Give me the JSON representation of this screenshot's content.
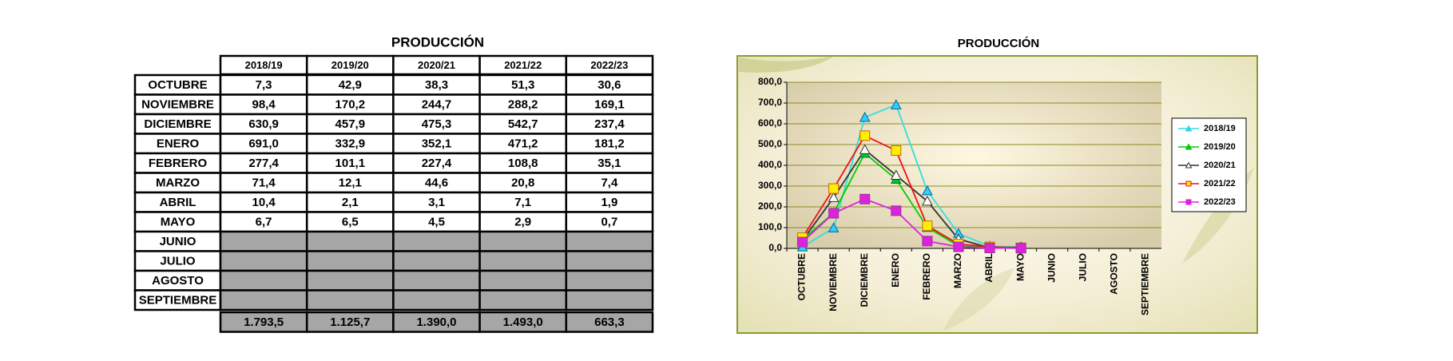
{
  "table": {
    "title": "PRODUCCIÓN",
    "columns": [
      "2018/19",
      "2019/20",
      "2020/21",
      "2021/22",
      "2022/23"
    ],
    "rows": [
      {
        "label": "OCTUBRE",
        "values": [
          "7,3",
          "42,9",
          "38,3",
          "51,3",
          "30,6"
        ]
      },
      {
        "label": "NOVIEMBRE",
        "values": [
          "98,4",
          "170,2",
          "244,7",
          "288,2",
          "169,1"
        ]
      },
      {
        "label": "DICIEMBRE",
        "values": [
          "630,9",
          "457,9",
          "475,3",
          "542,7",
          "237,4"
        ]
      },
      {
        "label": "ENERO",
        "values": [
          "691,0",
          "332,9",
          "352,1",
          "471,2",
          "181,2"
        ]
      },
      {
        "label": "FEBRERO",
        "values": [
          "277,4",
          "101,1",
          "227,4",
          "108,8",
          "35,1"
        ]
      },
      {
        "label": "MARZO",
        "values": [
          "71,4",
          "12,1",
          "44,6",
          "20,8",
          "7,4"
        ]
      },
      {
        "label": "ABRIL",
        "values": [
          "10,4",
          "2,1",
          "3,1",
          "7,1",
          "1,9"
        ]
      },
      {
        "label": "MAYO",
        "values": [
          "6,7",
          "6,5",
          "4,5",
          "2,9",
          "0,7"
        ]
      },
      {
        "label": "JUNIO",
        "values": [
          null,
          null,
          null,
          null,
          null
        ]
      },
      {
        "label": "JULIO",
        "values": [
          null,
          null,
          null,
          null,
          null
        ]
      },
      {
        "label": "AGOSTO",
        "values": [
          null,
          null,
          null,
          null,
          null
        ]
      },
      {
        "label": "SEPTIEMBRE",
        "values": [
          null,
          null,
          null,
          null,
          null
        ]
      }
    ],
    "totals": [
      "1.793,5",
      "1.125,7",
      "1.390,0",
      "1.493,0",
      "663,3"
    ]
  },
  "chart_data": {
    "type": "line",
    "title": "PRODUCCIÓN",
    "categories": [
      "OCTUBRE",
      "NOVIEMBRE",
      "DICIEMBRE",
      "ENERO",
      "FEBRERO",
      "MARZO",
      "ABRIL",
      "MAYO",
      "JUNIO",
      "JULIO",
      "AGOSTO",
      "SEPTIEMBRE"
    ],
    "series": [
      {
        "name": "2018/19",
        "color": "#33dddd",
        "marker": "triangle",
        "marker_fill": "#33ccff",
        "values": [
          7.3,
          98.4,
          630.9,
          691.0,
          277.4,
          71.4,
          10.4,
          6.7,
          null,
          null,
          null,
          null
        ]
      },
      {
        "name": "2019/20",
        "color": "#00cc00",
        "marker": "triangle",
        "marker_fill": "#00cc00",
        "values": [
          42.9,
          170.2,
          457.9,
          332.9,
          101.1,
          12.1,
          2.1,
          6.5,
          null,
          null,
          null,
          null
        ]
      },
      {
        "name": "2020/21",
        "color": "#333333",
        "marker": "triangle",
        "marker_fill": "#ffffff",
        "values": [
          38.3,
          244.7,
          475.3,
          352.1,
          227.4,
          44.6,
          3.1,
          4.5,
          null,
          null,
          null,
          null
        ]
      },
      {
        "name": "2021/22",
        "color": "#ee1111",
        "marker": "square",
        "marker_fill": "#ffee00",
        "values": [
          51.3,
          288.2,
          542.7,
          471.2,
          108.8,
          20.8,
          7.1,
          2.9,
          null,
          null,
          null,
          null
        ]
      },
      {
        "name": "2022/23",
        "color": "#dd22dd",
        "marker": "square",
        "marker_fill": "#dd22dd",
        "values": [
          30.6,
          169.1,
          237.4,
          181.2,
          35.1,
          7.4,
          1.9,
          0.7,
          null,
          null,
          null,
          null
        ]
      }
    ],
    "ylim": [
      0,
      800
    ],
    "yticks": [
      {
        "value": 0,
        "label": "0,0"
      },
      {
        "value": 100,
        "label": "100,0"
      },
      {
        "value": 200,
        "label": "200,0"
      },
      {
        "value": 300,
        "label": "300,0"
      },
      {
        "value": 400,
        "label": "400,0"
      },
      {
        "value": 500,
        "label": "500,0"
      },
      {
        "value": 600,
        "label": "600,0"
      },
      {
        "value": 700,
        "label": "700,0"
      },
      {
        "value": 800,
        "label": "800,0"
      }
    ],
    "grid": true,
    "legend": "right"
  }
}
